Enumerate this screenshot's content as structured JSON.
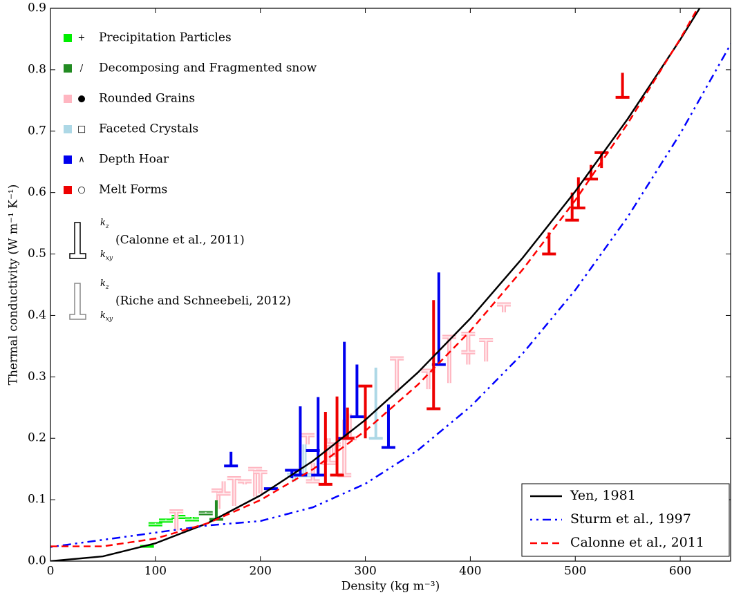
{
  "chart_data": {
    "type": "line",
    "x_label": "Density (kg m⁻³)",
    "y_label": "Thermal conductivity (W m⁻¹ K⁻¹)",
    "xlim": [
      0,
      648
    ],
    "ylim": [
      0,
      0.9
    ],
    "xticks": [
      0,
      100,
      200,
      300,
      400,
      500,
      600
    ],
    "yticks": [
      {
        "value": 0,
        "label": "0.0"
      },
      {
        "value": 0.1,
        "label": "0.1"
      },
      {
        "value": 0.2,
        "label": "0.2"
      },
      {
        "value": 0.3,
        "label": "0.3"
      },
      {
        "value": 0.4,
        "label": "0.4"
      },
      {
        "value": 0.5,
        "label": "0.5"
      },
      {
        "value": 0.6,
        "label": "0.6"
      },
      {
        "value": 0.7,
        "label": "0.7"
      },
      {
        "value": 0.8,
        "label": "0.8"
      },
      {
        "value": 0.9,
        "label": "0.9"
      }
    ],
    "legend": "lower right",
    "x": [
      0,
      50,
      100,
      150,
      200,
      250,
      300,
      350,
      400,
      450,
      500,
      550,
      600,
      650
    ],
    "series": [
      {
        "name": "Yen, 1981",
        "color": "#000000",
        "linestyle": "solid",
        "values": [
          0,
          0.0078,
          0.029,
          0.062,
          0.107,
          0.163,
          0.23,
          0.307,
          0.395,
          0.494,
          0.602,
          0.72,
          0.849,
          0.987
        ]
      },
      {
        "name": "Sturm et al., 1997",
        "color": "#0000ff",
        "linestyle": "dashdot",
        "values": [
          0.023,
          0.0347,
          0.0464,
          0.0581,
          0.0653,
          0.0876,
          0.126,
          0.1805,
          0.2513,
          0.3382,
          0.4413,
          0.5605,
          0.6959,
          0.8474
        ]
      },
      {
        "name": "Calonne et al., 2011",
        "color": "#ff0000",
        "linestyle": "dashed",
        "values": [
          0.024,
          0.0241,
          0.0367,
          0.0618,
          0.0994,
          0.1495,
          0.2121,
          0.2872,
          0.3748,
          0.4749,
          0.5875,
          0.7126,
          0.8502,
          1.0003
        ]
      }
    ],
    "grain_types": [
      {
        "name": "Precipitation Particles",
        "color": "#00ee00",
        "symbol": "+",
        "calonne": {
          "x": [
            92
          ],
          "kz": [
            0.027
          ],
          "kxy": [
            0.024
          ]
        },
        "riche": {
          "x": [
            100,
            110,
            122,
            135
          ],
          "kz": [
            0.062,
            0.068,
            0.07,
            0.072
          ],
          "kxy": [
            0.06,
            0.066,
            0.072,
            0.068
          ]
        }
      },
      {
        "name": "Decomposing and Fragmented snow",
        "color": "#228b22",
        "symbol": "/",
        "calonne": {
          "x": [
            158
          ],
          "kz": [
            0.099
          ],
          "kxy": [
            0.068
          ]
        },
        "riche": {
          "x": [
            148
          ],
          "kz": [
            0.08
          ],
          "kxy": [
            0.078
          ]
        }
      },
      {
        "name": "Rounded Grains",
        "color": "#ffb6c1",
        "symbol": "●",
        "calonne": {
          "x": [],
          "kz": [],
          "kxy": []
        },
        "riche": {
          "x": [
            120,
            160,
            165,
            175,
            185,
            195,
            200,
            245,
            250,
            265,
            270,
            280,
            285,
            330,
            360,
            380,
            398,
            398,
            415,
            432
          ],
          "kz": [
            0.05,
            0.085,
            0.13,
            0.09,
            0.125,
            0.105,
            0.11,
            0.19,
            0.16,
            0.2,
            0.17,
            0.23,
            0.24,
            0.275,
            0.28,
            0.29,
            0.32,
            0.36,
            0.325,
            0.405
          ],
          "kxy": [
            0.081,
            0.115,
            0.11,
            0.135,
            0.13,
            0.15,
            0.145,
            0.205,
            0.13,
            0.16,
            0.19,
            0.14,
            0.2,
            0.33,
            0.31,
            0.365,
            0.37,
            0.34,
            0.36,
            0.418
          ]
        }
      },
      {
        "name": "Faceted Crystals",
        "color": "#add8e6",
        "symbol": "□",
        "calonne": {
          "x": [
            310
          ],
          "kz": [
            0.315
          ],
          "kxy": [
            0.2
          ]
        },
        "riche": {
          "x": [
            232,
            242
          ],
          "kz": [
            0.13,
            0.19
          ],
          "kxy": [
            0.14,
            0.14
          ]
        }
      },
      {
        "name": "Depth Hoar",
        "color": "#0000ee",
        "symbol": "∧",
        "calonne": {
          "x": [
            172,
            210,
            230,
            238,
            250,
            255,
            280,
            292,
            322,
            370
          ],
          "kz": [
            0.178,
            0.12,
            0.135,
            0.252,
            0.18,
            0.267,
            0.357,
            0.32,
            0.255,
            0.47
          ],
          "kxy": [
            0.155,
            0.118,
            0.148,
            0.14,
            0.18,
            0.14,
            0.2,
            0.235,
            0.185,
            0.32
          ]
        },
        "riche": {
          "x": [],
          "kz": [],
          "kxy": []
        }
      },
      {
        "name": "Melt Forms",
        "color": "#ee0000",
        "symbol": "○",
        "calonne": {
          "x": [
            262,
            273,
            283,
            300,
            365,
            475,
            497,
            503,
            515,
            525,
            545
          ],
          "kz": [
            0.243,
            0.268,
            0.25,
            0.2,
            0.425,
            0.535,
            0.6,
            0.625,
            0.645,
            0.64,
            0.795
          ],
          "kxy": [
            0.125,
            0.14,
            0.2,
            0.285,
            0.248,
            0.5,
            0.555,
            0.575,
            0.622,
            0.665,
            0.755
          ]
        },
        "riche": {
          "x": [],
          "kz": [],
          "kxy": []
        }
      }
    ],
    "symbol_legend": {
      "kz": {
        "base": "k",
        "sub": "z"
      },
      "kxy": {
        "base": "k",
        "sub": "xy"
      },
      "calonne": "(Calonne et al., 2011)",
      "riche": "(Riche and Schneebeli, 2012)"
    }
  }
}
